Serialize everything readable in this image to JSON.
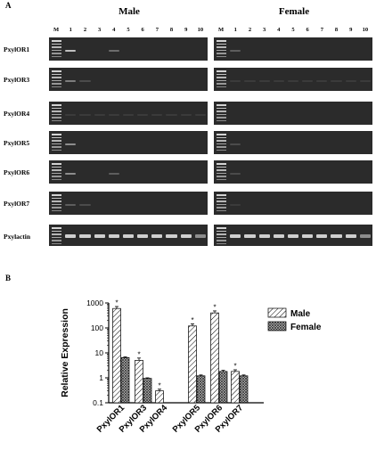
{
  "figure": {
    "panel_a_label": "A",
    "panel_b_label": "B",
    "male_title": "Male",
    "female_title": "Female",
    "lanes": [
      "M",
      "1",
      "2",
      "3",
      "4",
      "5",
      "6",
      "7",
      "8",
      "9",
      "10"
    ],
    "genes": [
      "PxylOR1",
      "PxylOR3",
      "PxylOR4",
      "PxylOR5",
      "PxylOR6",
      "PxylOR7",
      "Pxylactin"
    ],
    "gel_bands": {
      "male": [
        [
          0.9,
          0,
          0,
          0.4,
          0,
          0,
          0,
          0,
          0,
          0
        ],
        [
          0.5,
          0.2,
          0,
          0,
          0,
          0,
          0,
          0,
          0,
          0
        ],
        [
          0.1,
          0.1,
          0.1,
          0.1,
          0.1,
          0.1,
          0.1,
          0.1,
          0.1,
          0.1
        ],
        [
          0.6,
          0,
          0,
          0,
          0,
          0,
          0,
          0,
          0,
          0
        ],
        [
          0.6,
          0,
          0,
          0.3,
          0,
          0,
          0,
          0,
          0,
          0
        ],
        [
          0.3,
          0.2,
          0,
          0,
          0,
          0,
          0,
          0,
          0,
          0
        ],
        [
          1,
          1,
          1,
          1,
          1,
          1,
          1,
          1,
          1,
          0.6
        ]
      ],
      "female": [
        [
          0.3,
          0,
          0,
          0,
          0,
          0,
          0,
          0,
          0,
          0
        ],
        [
          0.1,
          0.1,
          0.1,
          0.1,
          0.1,
          0.1,
          0.1,
          0.1,
          0.1,
          0.1
        ],
        [
          0,
          0,
          0,
          0,
          0,
          0,
          0,
          0,
          0,
          0
        ],
        [
          0.2,
          0,
          0,
          0,
          0,
          0,
          0,
          0,
          0,
          0
        ],
        [
          0.2,
          0,
          0,
          0,
          0,
          0,
          0,
          0,
          0,
          0
        ],
        [
          0.1,
          0,
          0,
          0,
          0,
          0,
          0,
          0,
          0,
          0
        ],
        [
          1,
          1,
          1,
          1,
          1,
          1,
          1,
          1,
          1,
          0.6
        ]
      ]
    }
  },
  "chart_data": {
    "type": "bar",
    "categories": [
      "PxylOR1",
      "PxylOR3",
      "PxylOR4",
      "PxylOR5",
      "PxylOR6",
      "PxylOR7"
    ],
    "series": [
      {
        "name": "Male",
        "values": [
          600,
          5,
          0.3,
          120,
          400,
          1.8
        ],
        "errors": [
          120,
          1.2,
          0.05,
          25,
          80,
          0.3
        ],
        "significant": [
          true,
          true,
          true,
          true,
          true,
          true
        ]
      },
      {
        "name": "Female",
        "values": [
          6.5,
          0.95,
          null,
          1.2,
          1.8,
          1.2
        ],
        "errors": [
          0.4,
          0.05,
          null,
          0.1,
          0.2,
          0.1
        ],
        "significant": [
          false,
          false,
          false,
          false,
          false,
          false
        ]
      }
    ],
    "ylabel": "Relative Expression",
    "xlabel": "",
    "yscale": "log",
    "ylim": [
      0.1,
      1000
    ],
    "yticks": [
      "0.1",
      "1",
      "10",
      "100",
      "1000"
    ],
    "significance_mark": "*",
    "legend_position": "top-right",
    "colors": {
      "male": "#ffffff",
      "female": "#7a7a7a",
      "stroke": "#000000"
    }
  }
}
